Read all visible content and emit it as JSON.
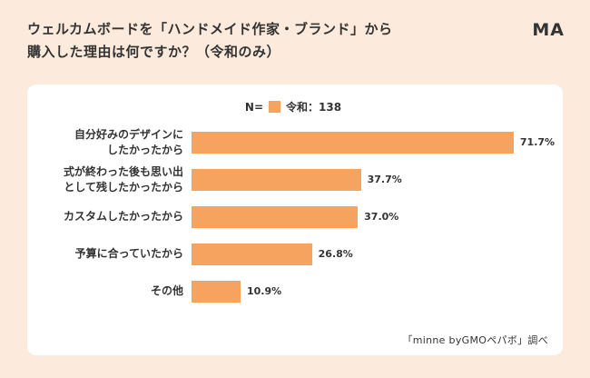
{
  "header": {
    "title": "ウェルカムボードを「ハンドメイド作家・ブランド」から\n購入した理由は何ですか？（令和のみ）",
    "tag": "MA"
  },
  "legend": {
    "n_label": "N=",
    "series_label": "令和：138",
    "swatch_color": "#f5a35f"
  },
  "chart_data": {
    "type": "bar",
    "orientation": "horizontal",
    "title": "ウェルカムボードを「ハンドメイド作家・ブランド」から購入した理由は何ですか？（令和のみ）",
    "series_name": "令和",
    "n": 138,
    "categories": [
      "自分好みのデザインに\nしたかったから",
      "式が終わった後も思い出\nとして残したかったから",
      "カスタムしたかったから",
      "予算に合っていたから",
      "その他"
    ],
    "values": [
      71.7,
      37.7,
      37.0,
      26.8,
      10.9
    ],
    "value_labels": [
      "71.7%",
      "37.7%",
      "37.0%",
      "26.8%",
      "10.9%"
    ],
    "xlabel": "",
    "ylabel": "",
    "xlim": [
      0,
      100
    ],
    "grid": false,
    "legend_position": "top",
    "bar_color": "#f5a35f"
  },
  "footer": {
    "source": "「minne byGMOペパボ」調べ"
  }
}
